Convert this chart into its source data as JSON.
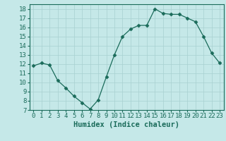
{
  "xlabel": "Humidex (Indice chaleur)",
  "x": [
    0,
    1,
    2,
    3,
    4,
    5,
    6,
    7,
    8,
    9,
    10,
    11,
    12,
    13,
    14,
    15,
    16,
    17,
    18,
    19,
    20,
    21,
    22,
    23
  ],
  "y": [
    11.8,
    12.1,
    11.9,
    10.2,
    9.4,
    8.5,
    7.8,
    7.1,
    8.1,
    10.6,
    13.0,
    15.0,
    15.8,
    16.2,
    16.2,
    18.0,
    17.5,
    17.4,
    17.4,
    17.0,
    16.6,
    15.0,
    13.2,
    12.1
  ],
  "line_color": "#1a6b5a",
  "marker": "D",
  "marker_size": 2.5,
  "bg_color": "#c5e8e8",
  "grid_color": "#a8d0d0",
  "ylim": [
    7,
    18.5
  ],
  "xlim": [
    -0.5,
    23.5
  ],
  "yticks": [
    7,
    8,
    9,
    10,
    11,
    12,
    13,
    14,
    15,
    16,
    17,
    18
  ],
  "xticks": [
    0,
    1,
    2,
    3,
    4,
    5,
    6,
    7,
    8,
    9,
    10,
    11,
    12,
    13,
    14,
    15,
    16,
    17,
    18,
    19,
    20,
    21,
    22,
    23
  ],
  "tick_label_color": "#1a6b5a",
  "xlabel_color": "#1a6b5a",
  "xlabel_fontsize": 7.5,
  "tick_fontsize": 6.5
}
